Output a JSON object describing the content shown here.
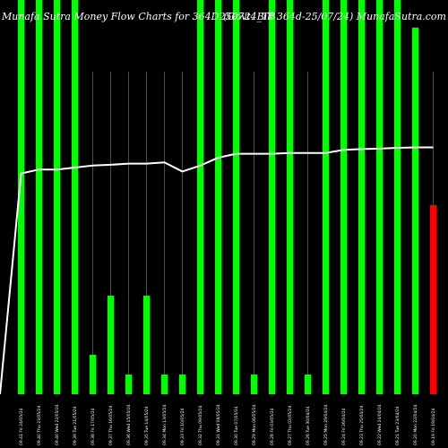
{
  "title_left": "Munafa Sutra Money Flow Charts for 364D250724_TB",
  "title_right": "(Govt. Bill 364d-25/07/24) MunafaSutra.com",
  "chart_data": {
    "type": "bar",
    "title": "Munafa Sutra Money Flow Charts for 364D250724_TB",
    "subtitle": "(Govt. Bill 364d-25/07/24) MunafaSutra.com",
    "ylim": [
      0,
      100
    ],
    "categories": [
      "09.41 Fri 24/05/24",
      "09.40 Thu 23/05/24",
      "09.40 Wed 22/05/24",
      "09.39 Tue 21/05/24",
      "09.38 Fri 17/05/24",
      "09.37 Thu 16/05/24",
      "09.36 Wed 15/05/24",
      "09.35 Tue 14/05/24",
      "09.34 Mon 13/05/24",
      "09.33 Fri 10/05/24",
      "09.32 Thu 09/05/24",
      "09.31 Wed 08/05/24",
      "09.30 Tue 07/05/24",
      "09.29 Mon 06/05/24",
      "09.28 Fri 03/05/24",
      "09.27 Thu 02/05/24",
      "09.26 Tue 30/04/24",
      "09.25 Mon 29/04/24",
      "09.24 Fri 26/04/24",
      "09.23 Thu 25/04/24",
      "09.22 Wed 24/04/24",
      "09.21 Tue 23/04/24",
      "09.20 Mon 22/04/24",
      "09.19 Fri 19/04/24"
    ],
    "series": [
      {
        "values": [
          100,
          100,
          100,
          100,
          10,
          25,
          5,
          25,
          5,
          5,
          100,
          100,
          100,
          5,
          100,
          100,
          5,
          100,
          100,
          100,
          100,
          100,
          93,
          48
        ],
        "colors": [
          "#00ff00",
          "#00ff00",
          "#00ff00",
          "#00ff00",
          "#00ff00",
          "#00ff00",
          "#00ff00",
          "#00ff00",
          "#00ff00",
          "#00ff00",
          "#00ff00",
          "#00ff00",
          "#00ff00",
          "#00ff00",
          "#00ff00",
          "#00ff00",
          "#00ff00",
          "#00ff00",
          "#00ff00",
          "#00ff00",
          "#00ff00",
          "#00ff00",
          "#00ff00",
          "#ff0000"
        ]
      },
      {
        "type": "line",
        "color": "#ffffff",
        "values": [
          56,
          57,
          57,
          57.5,
          58,
          58.2,
          58.5,
          58.5,
          58.8,
          56.5,
          58,
          60,
          61,
          61,
          61,
          61.2,
          61.2,
          61.2,
          62,
          62.2,
          62.3,
          62.5,
          62.6,
          62.6
        ]
      }
    ],
    "grid_lines": true,
    "grid_color": "#b8751e"
  }
}
